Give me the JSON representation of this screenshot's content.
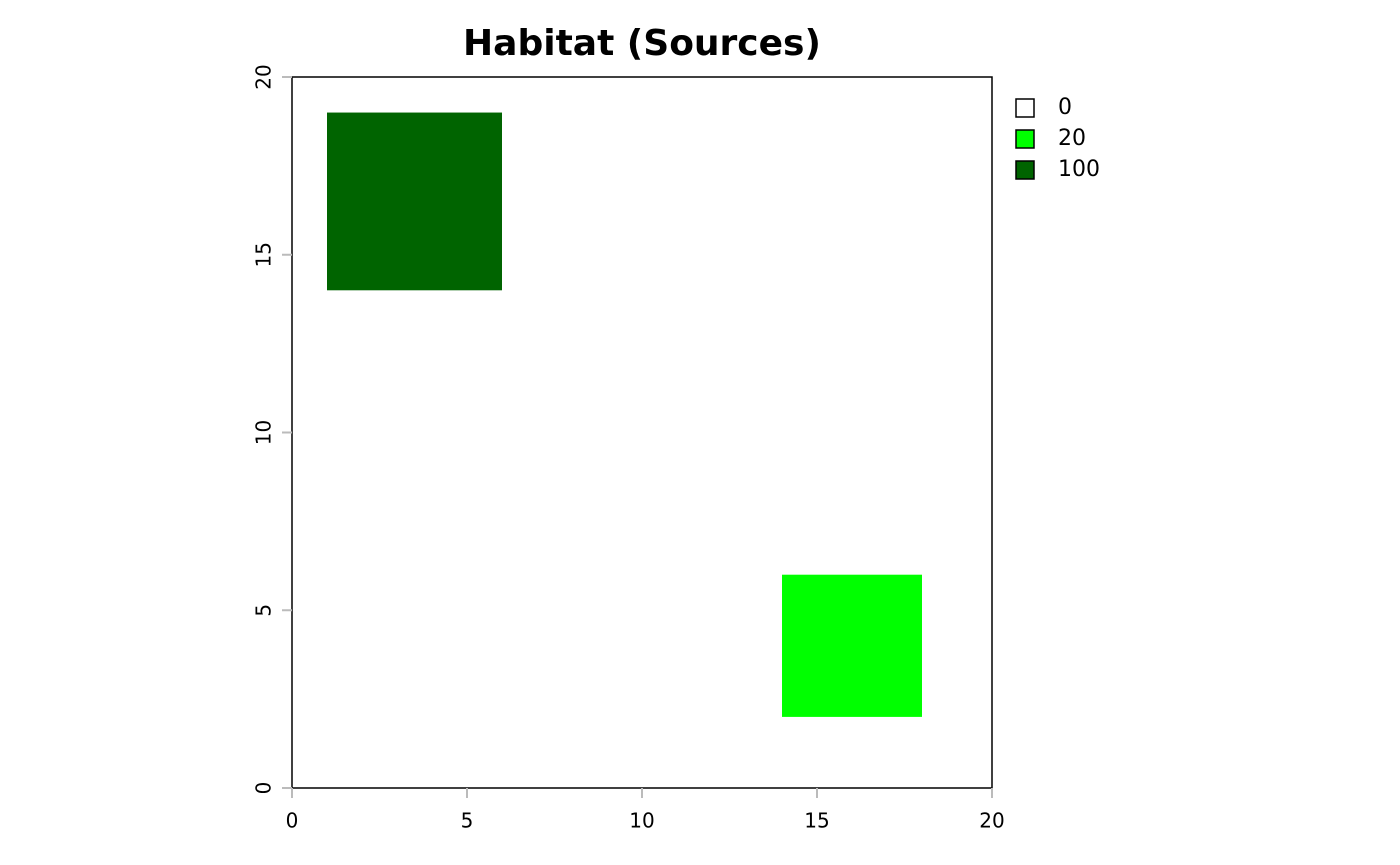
{
  "chart_data": {
    "type": "raster",
    "title": "Habitat (Sources)",
    "xlim": [
      0,
      20
    ],
    "ylim": [
      0,
      20
    ],
    "xticks": [
      0,
      5,
      10,
      15,
      20
    ],
    "yticks": [
      0,
      5,
      10,
      15,
      20
    ],
    "legend": {
      "categories": [
        0,
        20,
        100
      ],
      "colors": [
        "#ffffff",
        "#00ff00",
        "#006400"
      ]
    },
    "cells": [
      {
        "x": [
          1,
          6
        ],
        "y": [
          14,
          19
        ],
        "value": 100
      },
      {
        "x": [
          14,
          18
        ],
        "y": [
          2,
          6
        ],
        "value": 20
      }
    ]
  }
}
